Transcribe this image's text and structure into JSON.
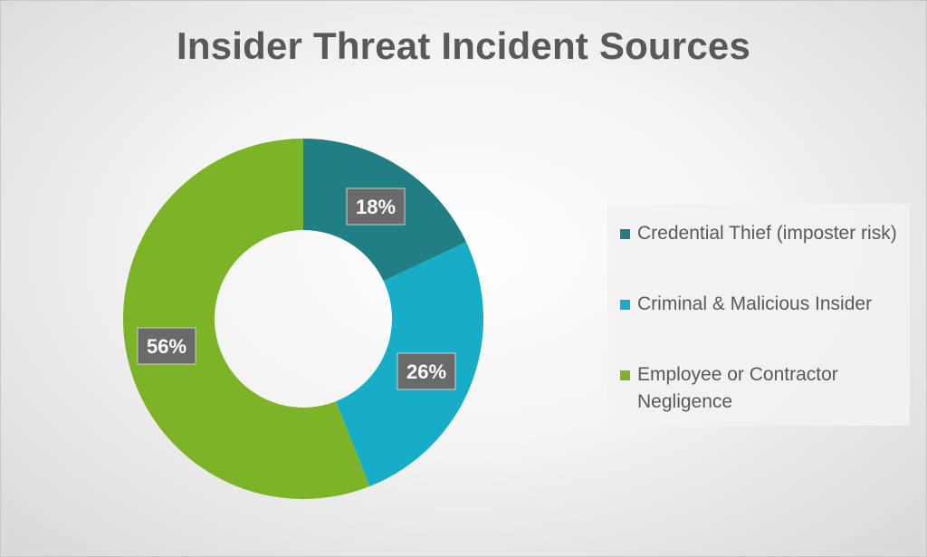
{
  "chart_data": {
    "type": "pie",
    "variant": "donut",
    "title": "Insider Threat Incident Sources",
    "slices": [
      {
        "name": "Credential Thief (imposter risk)",
        "value": 18,
        "label": "18%",
        "color": "#1f7f84"
      },
      {
        "name": "Criminal & Malicious Insider",
        "value": 26,
        "label": "26%",
        "color": "#16aec6"
      },
      {
        "name": "Employee or Contractor Negligence",
        "value": 56,
        "label": "56%",
        "color": "#7db327"
      }
    ],
    "legend_position": "right"
  }
}
